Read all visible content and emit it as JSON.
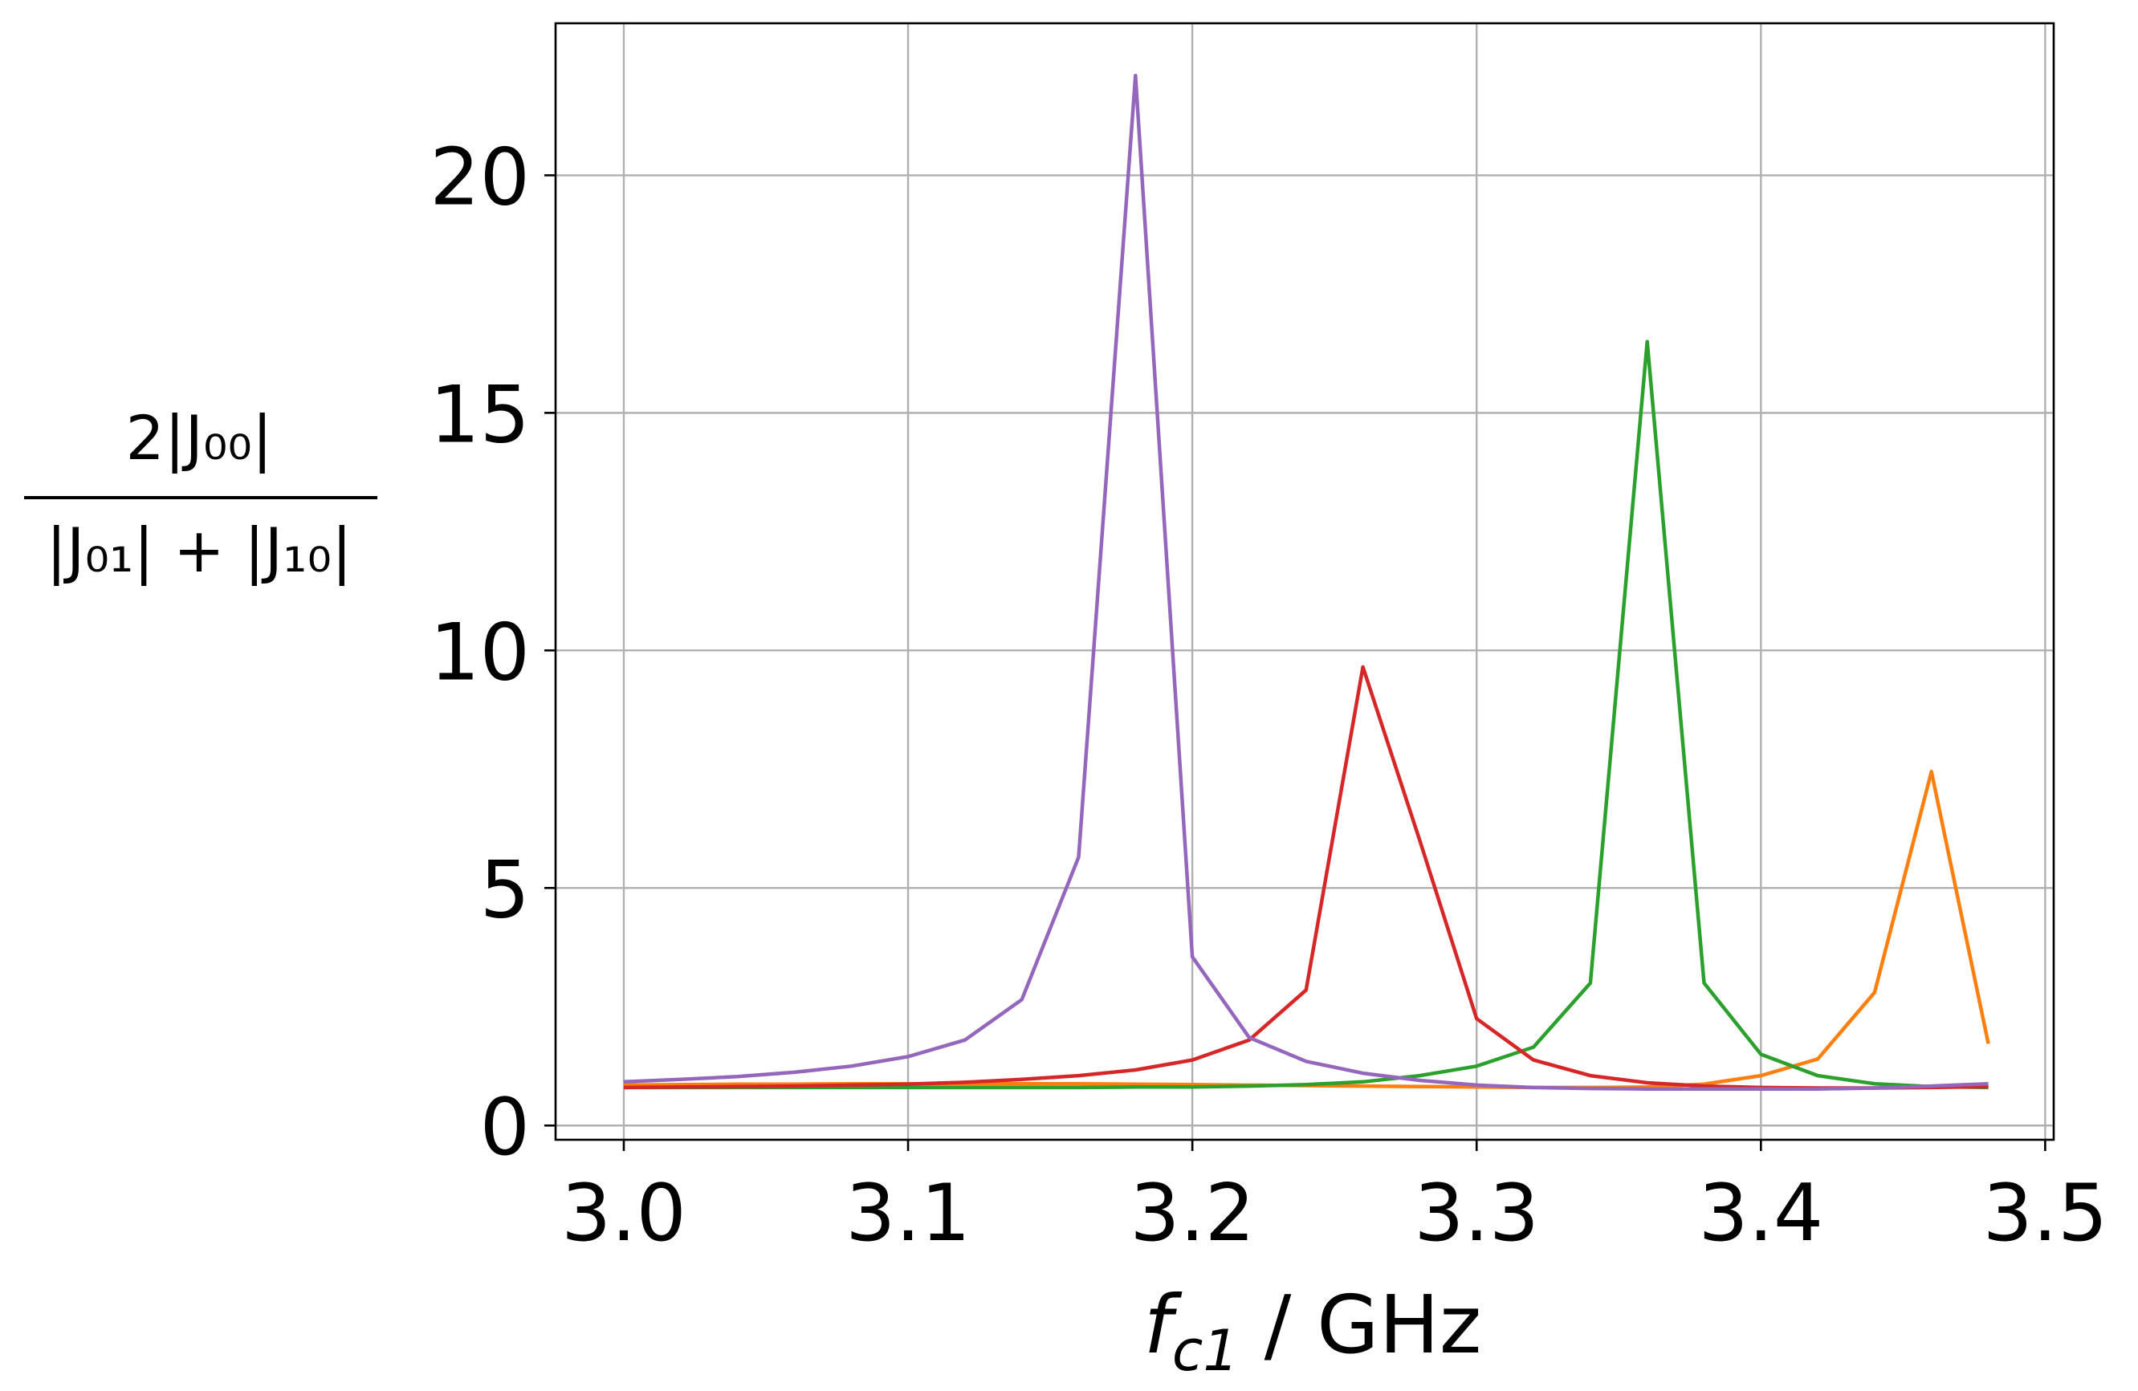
{
  "chart_data": {
    "type": "line",
    "xlabel": "f_c1 / GHz",
    "xlabel_italic": "f",
    "xlabel_sub": "c1",
    "xlabel_unit": " / GHz",
    "ylabel_numerator": "2|J₀₀|",
    "ylabel_denominator": "|J₀₁| + |J₁₀|",
    "xlim": [
      2.976,
      3.503
    ],
    "ylim": [
      -0.3,
      23.2
    ],
    "grid": true,
    "xticks": [
      3.0,
      3.1,
      3.2,
      3.3,
      3.4,
      3.5
    ],
    "xtick_labels": [
      "3.0",
      "3.1",
      "3.2",
      "3.3",
      "3.4",
      "3.5"
    ],
    "yticks": [
      0,
      5,
      10,
      15,
      20
    ],
    "ytick_labels": [
      "0",
      "5",
      "10",
      "15",
      "20"
    ],
    "x": [
      3.0,
      3.02,
      3.04,
      3.06,
      3.08,
      3.1,
      3.12,
      3.14,
      3.16,
      3.18,
      3.2,
      3.22,
      3.24,
      3.26,
      3.28,
      3.3,
      3.32,
      3.34,
      3.36,
      3.38,
      3.4,
      3.42,
      3.44,
      3.46,
      3.48
    ],
    "series": [
      {
        "color": "#ff7f0e",
        "values": [
          0.85,
          0.86,
          0.87,
          0.87,
          0.88,
          0.88,
          0.88,
          0.88,
          0.88,
          0.87,
          0.86,
          0.85,
          0.84,
          0.83,
          0.82,
          0.81,
          0.8,
          0.8,
          0.81,
          0.87,
          1.05,
          1.4,
          2.8,
          7.45,
          1.72
        ]
      },
      {
        "color": "#2ca02c",
        "values": [
          0.8,
          0.8,
          0.8,
          0.8,
          0.8,
          0.8,
          0.8,
          0.8,
          0.8,
          0.81,
          0.81,
          0.83,
          0.86,
          0.92,
          1.05,
          1.25,
          1.65,
          3.0,
          16.5,
          3.0,
          1.5,
          1.05,
          0.88,
          0.82,
          0.8
        ]
      },
      {
        "color": "#d62728",
        "values": [
          0.8,
          0.81,
          0.82,
          0.83,
          0.85,
          0.87,
          0.91,
          0.97,
          1.05,
          1.17,
          1.38,
          1.8,
          2.85,
          9.65,
          6.0,
          2.25,
          1.38,
          1.05,
          0.9,
          0.83,
          0.8,
          0.79,
          0.79,
          0.8,
          0.82
        ]
      },
      {
        "color": "#9467bd",
        "values": [
          0.92,
          0.97,
          1.03,
          1.12,
          1.25,
          1.45,
          1.8,
          2.65,
          5.65,
          22.1,
          3.55,
          1.85,
          1.35,
          1.1,
          0.95,
          0.85,
          0.8,
          0.78,
          0.77,
          0.77,
          0.77,
          0.77,
          0.79,
          0.83,
          0.88
        ]
      }
    ]
  }
}
